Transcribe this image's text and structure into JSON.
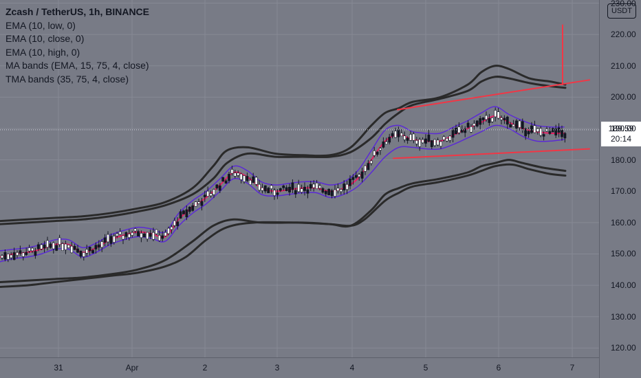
{
  "legend": {
    "symbol": "Zcash / TetherUS, 1h, BINANCE",
    "indicators": [
      "EMA (10, low, 0)",
      "EMA (10, close, 0)",
      "EMA (10, high, 0)",
      "MA bands (EMA, 15, 75, 4, close)",
      "TMA bands (35, 75, 4, close)"
    ]
  },
  "price_axis": {
    "currency": "USDT",
    "current_price": "189.59",
    "countdown": "20:14"
  },
  "colors": {
    "background": "#787b86",
    "grid": "#868994",
    "candle_up": "#ffffff",
    "candle_down": "#131722",
    "ema_low": "#5b2ad6",
    "ema_close": "#e91e63",
    "ema_high": "#5b2ad6",
    "band": "#2a2a2a",
    "trendline": "#f23645",
    "text": "#131722"
  },
  "chart_data": {
    "type": "candlestick",
    "title": "Zcash / TetherUS, 1h, BINANCE",
    "ylim": [
      117,
      231
    ],
    "y_ticks": [
      120,
      130,
      140,
      150,
      160,
      170,
      180,
      190,
      200,
      210,
      220,
      230
    ],
    "y_tick_labels": [
      "120.00",
      "130.00",
      "140.00",
      "150.00",
      "160.00",
      "170.00",
      "180.00",
      "190.00",
      "200.00",
      "210.00",
      "220.00",
      "230.00"
    ],
    "x_labels": [
      "31",
      "Apr",
      "2",
      "3",
      "4",
      "5",
      "6",
      "7"
    ],
    "current_price": 189.59,
    "series": [
      {
        "name": "EMA (10, close, 0)",
        "kind": "ema_close",
        "values": [
          [
            0,
            149
          ],
          [
            20,
            150
          ],
          [
            40,
            150.5
          ],
          [
            60,
            151.5
          ],
          [
            80,
            153
          ],
          [
            100,
            153
          ],
          [
            120,
            150.5
          ],
          [
            140,
            152
          ],
          [
            160,
            154.5
          ],
          [
            180,
            156
          ],
          [
            200,
            157
          ],
          [
            220,
            156.5
          ],
          [
            240,
            155.5
          ],
          [
            260,
            161
          ],
          [
            280,
            165
          ],
          [
            300,
            168
          ],
          [
            320,
            172
          ],
          [
            340,
            176
          ],
          [
            360,
            174.5
          ],
          [
            380,
            171
          ],
          [
            400,
            170
          ],
          [
            420,
            170.5
          ],
          [
            440,
            171
          ],
          [
            460,
            171
          ],
          [
            480,
            170
          ],
          [
            500,
            171
          ],
          [
            520,
            174
          ],
          [
            540,
            180
          ],
          [
            560,
            186
          ],
          [
            580,
            188
          ],
          [
            600,
            186.5
          ],
          [
            620,
            186
          ],
          [
            640,
            186
          ],
          [
            660,
            188
          ],
          [
            680,
            190
          ],
          [
            700,
            192
          ],
          [
            720,
            194
          ],
          [
            740,
            192
          ],
          [
            760,
            190
          ],
          [
            780,
            189
          ],
          [
            800,
            188.5
          ],
          [
            820,
            188.5
          ]
        ]
      },
      {
        "name": "EMA (10, low, 0)",
        "kind": "ema_low",
        "values": [
          [
            0,
            147.5
          ],
          [
            20,
            148.5
          ],
          [
            40,
            149
          ],
          [
            60,
            150
          ],
          [
            80,
            151.5
          ],
          [
            100,
            151.5
          ],
          [
            120,
            149
          ],
          [
            140,
            150.5
          ],
          [
            160,
            153
          ],
          [
            180,
            154.5
          ],
          [
            200,
            155.5
          ],
          [
            220,
            155
          ],
          [
            240,
            154
          ],
          [
            260,
            159
          ],
          [
            280,
            163
          ],
          [
            300,
            166
          ],
          [
            320,
            170
          ],
          [
            340,
            174
          ],
          [
            360,
            172.5
          ],
          [
            380,
            169
          ],
          [
            400,
            168.5
          ],
          [
            420,
            169
          ],
          [
            440,
            169.5
          ],
          [
            460,
            169.5
          ],
          [
            480,
            168
          ],
          [
            500,
            169
          ],
          [
            520,
            171.5
          ],
          [
            540,
            176
          ],
          [
            560,
            181
          ],
          [
            580,
            184
          ],
          [
            600,
            184
          ],
          [
            620,
            183.5
          ],
          [
            640,
            183.5
          ],
          [
            660,
            185
          ],
          [
            680,
            187
          ],
          [
            700,
            189
          ],
          [
            720,
            191
          ],
          [
            740,
            190
          ],
          [
            760,
            187.5
          ],
          [
            780,
            186
          ],
          [
            800,
            186
          ],
          [
            820,
            186.5
          ]
        ]
      },
      {
        "name": "EMA (10, high, 0)",
        "kind": "ema_high",
        "values": [
          [
            0,
            151
          ],
          [
            20,
            151.5
          ],
          [
            40,
            152
          ],
          [
            60,
            153
          ],
          [
            80,
            154.5
          ],
          [
            100,
            154.5
          ],
          [
            120,
            152
          ],
          [
            140,
            153.5
          ],
          [
            160,
            156
          ],
          [
            180,
            157.5
          ],
          [
            200,
            158.5
          ],
          [
            220,
            158
          ],
          [
            240,
            157
          ],
          [
            260,
            163
          ],
          [
            280,
            167
          ],
          [
            300,
            170
          ],
          [
            320,
            174
          ],
          [
            340,
            178
          ],
          [
            360,
            176.5
          ],
          [
            380,
            173
          ],
          [
            400,
            172
          ],
          [
            420,
            172.5
          ],
          [
            440,
            173
          ],
          [
            460,
            173
          ],
          [
            480,
            172
          ],
          [
            500,
            173
          ],
          [
            520,
            176.5
          ],
          [
            540,
            183
          ],
          [
            560,
            189.5
          ],
          [
            580,
            191
          ],
          [
            600,
            189
          ],
          [
            620,
            188.5
          ],
          [
            640,
            188.5
          ],
          [
            660,
            190.5
          ],
          [
            680,
            192.5
          ],
          [
            700,
            195
          ],
          [
            720,
            197
          ],
          [
            740,
            194.5
          ],
          [
            760,
            192.5
          ],
          [
            780,
            191
          ],
          [
            800,
            190.5
          ],
          [
            820,
            190.5
          ]
        ]
      },
      {
        "name": "MA band upper 1",
        "kind": "band",
        "values": [
          [
            0,
            160.5
          ],
          [
            40,
            161
          ],
          [
            80,
            161.5
          ],
          [
            120,
            162
          ],
          [
            160,
            163
          ],
          [
            200,
            164.5
          ],
          [
            240,
            166.5
          ],
          [
            280,
            171
          ],
          [
            310,
            178
          ],
          [
            330,
            183
          ],
          [
            360,
            184
          ],
          [
            400,
            182
          ],
          [
            440,
            181.5
          ],
          [
            480,
            181.5
          ],
          [
            510,
            184
          ],
          [
            540,
            191
          ],
          [
            560,
            195
          ],
          [
            580,
            196.5
          ],
          [
            600,
            198.5
          ],
          [
            640,
            200
          ],
          [
            680,
            204
          ],
          [
            700,
            208
          ],
          [
            720,
            210
          ],
          [
            740,
            209
          ],
          [
            770,
            206
          ],
          [
            800,
            205
          ],
          [
            822,
            204
          ]
        ]
      },
      {
        "name": "MA band upper 2",
        "kind": "band",
        "values": [
          [
            0,
            159.5
          ],
          [
            40,
            160
          ],
          [
            80,
            160.5
          ],
          [
            120,
            161
          ],
          [
            160,
            162
          ],
          [
            200,
            163.5
          ],
          [
            240,
            165.5
          ],
          [
            280,
            169
          ],
          [
            310,
            174
          ],
          [
            330,
            179
          ],
          [
            360,
            182
          ],
          [
            400,
            181
          ],
          [
            440,
            181
          ],
          [
            480,
            181
          ],
          [
            510,
            182.5
          ],
          [
            540,
            187
          ],
          [
            560,
            191.5
          ],
          [
            580,
            195
          ],
          [
            600,
            197.5
          ],
          [
            640,
            199.5
          ],
          [
            680,
            202
          ],
          [
            700,
            205
          ],
          [
            720,
            206.5
          ],
          [
            740,
            206
          ],
          [
            770,
            204.5
          ],
          [
            800,
            203.5
          ],
          [
            822,
            203
          ]
        ]
      },
      {
        "name": "MA band lower 1",
        "kind": "band",
        "values": [
          [
            0,
            141
          ],
          [
            40,
            141.5
          ],
          [
            80,
            142
          ],
          [
            120,
            142.5
          ],
          [
            160,
            143.5
          ],
          [
            200,
            145
          ],
          [
            240,
            148
          ],
          [
            280,
            154
          ],
          [
            310,
            159
          ],
          [
            340,
            161
          ],
          [
            380,
            160
          ],
          [
            440,
            160
          ],
          [
            480,
            159.5
          ],
          [
            510,
            159
          ],
          [
            540,
            164
          ],
          [
            560,
            169
          ],
          [
            580,
            171
          ],
          [
            600,
            172.5
          ],
          [
            640,
            174
          ],
          [
            680,
            176
          ],
          [
            700,
            178
          ],
          [
            720,
            179
          ],
          [
            740,
            180
          ],
          [
            760,
            179
          ],
          [
            790,
            177.5
          ],
          [
            822,
            176.5
          ]
        ]
      },
      {
        "name": "MA band lower 2",
        "kind": "band",
        "values": [
          [
            0,
            139.5
          ],
          [
            40,
            140
          ],
          [
            80,
            141
          ],
          [
            120,
            142
          ],
          [
            160,
            143
          ],
          [
            200,
            144
          ],
          [
            240,
            146
          ],
          [
            270,
            149
          ],
          [
            300,
            154.5
          ],
          [
            330,
            158.5
          ],
          [
            370,
            160
          ],
          [
            430,
            160
          ],
          [
            480,
            159.5
          ],
          [
            510,
            159
          ],
          [
            530,
            161
          ],
          [
            560,
            167
          ],
          [
            580,
            169.5
          ],
          [
            600,
            171.5
          ],
          [
            640,
            173
          ],
          [
            680,
            175
          ],
          [
            700,
            176.5
          ],
          [
            720,
            178
          ],
          [
            745,
            178.5
          ],
          [
            770,
            177
          ],
          [
            800,
            175.5
          ],
          [
            822,
            175
          ]
        ]
      },
      {
        "name": "Resistance trendline",
        "kind": "trendline",
        "values": [
          [
            578,
            196
          ],
          [
            857,
            205.5
          ]
        ]
      },
      {
        "name": "Support trendline",
        "kind": "trendline",
        "values": [
          [
            572,
            180.5
          ],
          [
            857,
            183.5
          ]
        ]
      },
      {
        "name": "Vertical marker",
        "kind": "trendline",
        "values": [
          [
            818,
            223
          ],
          [
            818,
            204
          ]
        ]
      }
    ]
  }
}
